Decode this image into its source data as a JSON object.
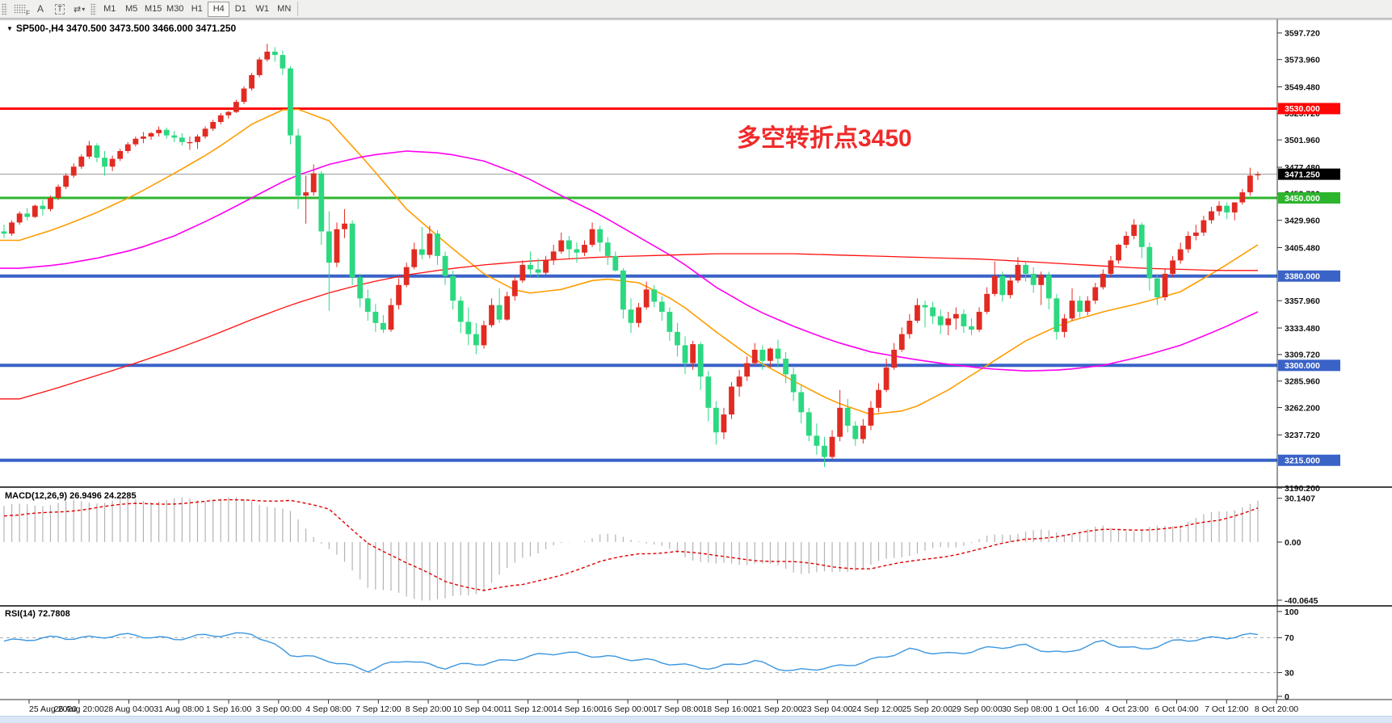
{
  "toolbar": {
    "font_indicator_icon": "F",
    "label_tool": "A",
    "textbox_tool": "T",
    "cycle_arrows_glyph": "⇄",
    "caret_glyph": "▾",
    "timeframes": [
      "M1",
      "M5",
      "M15",
      "M30",
      "H1",
      "H4",
      "D1",
      "W1",
      "MN"
    ],
    "active_timeframe": "H4"
  },
  "header": {
    "collapse_glyph": "▼",
    "title": "SP500-,H4 3470.500 3473.500 3466.000 3471.250"
  },
  "annotation": {
    "text": "多空转折点3450",
    "color": "#f02a2a"
  },
  "chart_data": {
    "type": "candlestick",
    "symbol": "SP500-",
    "timeframe": "H4",
    "up_color": "#e12b22",
    "down_color": "#2cd880",
    "current_price": {
      "value": 3471.25,
      "label": "3471.250",
      "box_color": "#000000",
      "line_color": "#9a9a9a"
    },
    "y_range_main": [
      3188,
      3610
    ],
    "price_ticks": [
      {
        "value": 3597.72,
        "label": "3597.720"
      },
      {
        "value": 3573.96,
        "label": "3573.960"
      },
      {
        "value": 3549.48,
        "label": "3549.480"
      },
      {
        "value": 3525.72,
        "label": "3525.720"
      },
      {
        "value": 3501.96,
        "label": "3501.960"
      },
      {
        "value": 3477.48,
        "label": "3477.480"
      },
      {
        "value": 3453.72,
        "label": "3453.720"
      },
      {
        "value": 3429.96,
        "label": "3429.960"
      },
      {
        "value": 3405.48,
        "label": "3405.480"
      },
      {
        "value": 3357.96,
        "label": "3357.960"
      },
      {
        "value": 3333.48,
        "label": "3333.480"
      },
      {
        "value": 3309.72,
        "label": "3309.720"
      },
      {
        "value": 3285.96,
        "label": "3285.960"
      },
      {
        "value": 3262.2,
        "label": "3262.200"
      },
      {
        "value": 3237.72,
        "label": "3237.720"
      },
      {
        "value": 3190.2,
        "label": "3190.200"
      }
    ],
    "levels": [
      {
        "price": 3530,
        "label": "3530.000",
        "color": "#fe0606",
        "thickness": 3
      },
      {
        "price": 3450,
        "label": "3450.000",
        "color": "#2db52d",
        "thickness": 3
      },
      {
        "price": 3380,
        "label": "3380.000",
        "color": "#3a63c8",
        "thickness": 4
      },
      {
        "price": 3300,
        "label": "3300.000",
        "color": "#3a63c8",
        "thickness": 4
      },
      {
        "price": 3215,
        "label": "3215.000",
        "color": "#3a63c8",
        "thickness": 4
      }
    ],
    "x_labels": [
      "25 Aug 2020",
      "26 Aug 20:00",
      "28 Aug 04:00",
      "31 Aug 08:00",
      "1 Sep 16:00",
      "3 Sep 00:00",
      "4 Sep 08:00",
      "7 Sep 12:00",
      "8 Sep 20:00",
      "10 Sep 04:00",
      "11 Sep 12:00",
      "14 Sep 16:00",
      "16 Sep 00:00",
      "17 Sep 08:00",
      "18 Sep 16:00",
      "21 Sep 20:00",
      "23 Sep 04:00",
      "24 Sep 12:00",
      "25 Sep 20:00",
      "29 Sep 00:00",
      "30 Sep 08:00",
      "1 Oct 16:00",
      "4 Oct 23:00",
      "6 Oct 04:00",
      "7 Oct 12:00",
      "8 Oct 20:00"
    ],
    "bars_per_day": 5,
    "candles": [
      [
        3420,
        3426,
        3414,
        3418
      ],
      [
        3418,
        3430,
        3416,
        3428
      ],
      [
        3428,
        3438,
        3426,
        3436
      ],
      [
        3436,
        3441,
        3430,
        3433
      ],
      [
        3433,
        3444,
        3432,
        3443
      ],
      [
        3443,
        3448,
        3434,
        3440
      ],
      [
        3440,
        3452,
        3438,
        3450
      ],
      [
        3450,
        3462,
        3448,
        3460
      ],
      [
        3460,
        3472,
        3458,
        3470
      ],
      [
        3470,
        3481,
        3468,
        3478
      ],
      [
        3478,
        3489,
        3476,
        3487
      ],
      [
        3487,
        3501,
        3485,
        3497
      ],
      [
        3497,
        3499,
        3482,
        3486
      ],
      [
        3486,
        3492,
        3470,
        3478
      ],
      [
        3478,
        3488,
        3474,
        3485
      ],
      [
        3485,
        3494,
        3483,
        3492
      ],
      [
        3492,
        3500,
        3490,
        3498
      ],
      [
        3498,
        3505,
        3496,
        3503
      ],
      [
        3503,
        3509,
        3499,
        3505
      ],
      [
        3505,
        3509,
        3502,
        3508
      ],
      [
        3508,
        3514,
        3505,
        3511
      ],
      [
        3511,
        3513,
        3503,
        3506
      ],
      [
        3506,
        3510,
        3500,
        3504
      ],
      [
        3504,
        3508,
        3497,
        3500
      ],
      [
        3500,
        3505,
        3493,
        3500
      ],
      [
        3500,
        3507,
        3494,
        3505
      ],
      [
        3505,
        3514,
        3503,
        3512
      ],
      [
        3512,
        3520,
        3510,
        3518
      ],
      [
        3518,
        3526,
        3516,
        3524
      ],
      [
        3524,
        3528,
        3521,
        3527
      ],
      [
        3527,
        3538,
        3526,
        3536
      ],
      [
        3536,
        3550,
        3534,
        3548
      ],
      [
        3548,
        3562,
        3546,
        3560
      ],
      [
        3560,
        3576,
        3558,
        3574
      ],
      [
        3574,
        3588,
        3572,
        3581
      ],
      [
        3581,
        3585,
        3572,
        3578
      ],
      [
        3578,
        3582,
        3560,
        3566
      ],
      [
        3566,
        3568,
        3498,
        3506
      ],
      [
        3506,
        3512,
        3440,
        3452
      ],
      [
        3452,
        3470,
        3427,
        3455
      ],
      [
        3455,
        3480,
        3452,
        3472
      ],
      [
        3472,
        3474,
        3408,
        3420
      ],
      [
        3420,
        3438,
        3349,
        3392
      ],
      [
        3392,
        3428,
        3388,
        3422
      ],
      [
        3422,
        3440,
        3414,
        3427
      ],
      [
        3427,
        3430,
        3372,
        3379
      ],
      [
        3379,
        3382,
        3352,
        3360
      ],
      [
        3360,
        3368,
        3340,
        3348
      ],
      [
        3348,
        3355,
        3330,
        3338
      ],
      [
        3338,
        3345,
        3329,
        3332
      ],
      [
        3332,
        3360,
        3330,
        3354
      ],
      [
        3354,
        3378,
        3350,
        3372
      ],
      [
        3372,
        3392,
        3370,
        3388
      ],
      [
        3388,
        3410,
        3386,
        3404
      ],
      [
        3404,
        3424,
        3395,
        3399
      ],
      [
        3399,
        3425,
        3396,
        3418
      ],
      [
        3418,
        3421,
        3390,
        3398
      ],
      [
        3398,
        3402,
        3372,
        3380
      ],
      [
        3380,
        3385,
        3350,
        3358
      ],
      [
        3358,
        3362,
        3329,
        3339
      ],
      [
        3339,
        3352,
        3318,
        3328
      ],
      [
        3328,
        3338,
        3310,
        3318
      ],
      [
        3318,
        3340,
        3315,
        3336
      ],
      [
        3336,
        3360,
        3334,
        3354
      ],
      [
        3354,
        3369,
        3338,
        3341
      ],
      [
        3341,
        3366,
        3340,
        3362
      ],
      [
        3362,
        3380,
        3358,
        3376
      ],
      [
        3376,
        3394,
        3374,
        3390
      ],
      [
        3390,
        3402,
        3380,
        3386
      ],
      [
        3386,
        3396,
        3378,
        3383
      ],
      [
        3383,
        3398,
        3381,
        3394
      ],
      [
        3394,
        3408,
        3390,
        3402
      ],
      [
        3402,
        3419,
        3400,
        3412
      ],
      [
        3412,
        3416,
        3396,
        3404
      ],
      [
        3404,
        3410,
        3392,
        3401
      ],
      [
        3401,
        3412,
        3398,
        3408
      ],
      [
        3408,
        3428,
        3406,
        3422
      ],
      [
        3422,
        3425,
        3402,
        3410
      ],
      [
        3410,
        3415,
        3390,
        3398
      ],
      [
        3398,
        3402,
        3384,
        3385
      ],
      [
        3385,
        3387,
        3342,
        3350
      ],
      [
        3350,
        3360,
        3329,
        3338
      ],
      [
        3338,
        3356,
        3334,
        3352
      ],
      [
        3352,
        3375,
        3350,
        3368
      ],
      [
        3368,
        3372,
        3352,
        3357
      ],
      [
        3357,
        3362,
        3340,
        3348
      ],
      [
        3348,
        3352,
        3322,
        3330
      ],
      [
        3330,
        3338,
        3308,
        3318
      ],
      [
        3318,
        3326,
        3292,
        3302
      ],
      [
        3302,
        3322,
        3296,
        3319
      ],
      [
        3319,
        3321,
        3278,
        3290
      ],
      [
        3290,
        3295,
        3250,
        3262
      ],
      [
        3262,
        3268,
        3229,
        3240
      ],
      [
        3240,
        3262,
        3234,
        3256
      ],
      [
        3256,
        3285,
        3252,
        3281
      ],
      [
        3281,
        3296,
        3272,
        3290
      ],
      [
        3290,
        3308,
        3286,
        3302
      ],
      [
        3302,
        3320,
        3300,
        3314
      ],
      [
        3314,
        3318,
        3296,
        3304
      ],
      [
        3304,
        3316,
        3298,
        3315
      ],
      [
        3315,
        3323,
        3298,
        3306
      ],
      [
        3306,
        3312,
        3284,
        3292
      ],
      [
        3292,
        3298,
        3268,
        3276
      ],
      [
        3276,
        3282,
        3248,
        3258
      ],
      [
        3258,
        3262,
        3232,
        3237
      ],
      [
        3237,
        3248,
        3220,
        3228
      ],
      [
        3228,
        3236,
        3209,
        3218
      ],
      [
        3218,
        3242,
        3216,
        3236
      ],
      [
        3236,
        3278,
        3232,
        3262
      ],
      [
        3262,
        3270,
        3240,
        3246
      ],
      [
        3246,
        3250,
        3228,
        3234
      ],
      [
        3234,
        3252,
        3230,
        3246
      ],
      [
        3246,
        3268,
        3242,
        3262
      ],
      [
        3262,
        3284,
        3258,
        3278
      ],
      [
        3278,
        3306,
        3276,
        3298
      ],
      [
        3298,
        3320,
        3296,
        3314
      ],
      [
        3314,
        3334,
        3312,
        3328
      ],
      [
        3328,
        3346,
        3324,
        3340
      ],
      [
        3340,
        3360,
        3338,
        3354
      ],
      [
        3354,
        3358,
        3334,
        3352
      ],
      [
        3352,
        3357,
        3337,
        3344
      ],
      [
        3344,
        3350,
        3328,
        3336
      ],
      [
        3336,
        3348,
        3327,
        3342
      ],
      [
        3342,
        3352,
        3332,
        3346
      ],
      [
        3346,
        3350,
        3329,
        3335
      ],
      [
        3335,
        3342,
        3327,
        3332
      ],
      [
        3332,
        3352,
        3330,
        3348
      ],
      [
        3348,
        3370,
        3346,
        3364
      ],
      [
        3364,
        3393,
        3362,
        3380
      ],
      [
        3380,
        3384,
        3357,
        3363
      ],
      [
        3363,
        3380,
        3360,
        3376
      ],
      [
        3376,
        3397,
        3374,
        3390
      ],
      [
        3390,
        3394,
        3375,
        3382
      ],
      [
        3382,
        3388,
        3365,
        3372
      ],
      [
        3372,
        3384,
        3354,
        3381
      ],
      [
        3381,
        3384,
        3350,
        3360
      ],
      [
        3360,
        3364,
        3323,
        3330
      ],
      [
        3330,
        3346,
        3325,
        3342
      ],
      [
        3342,
        3369,
        3340,
        3358
      ],
      [
        3358,
        3362,
        3343,
        3348
      ],
      [
        3348,
        3362,
        3345,
        3358
      ],
      [
        3358,
        3374,
        3355,
        3370
      ],
      [
        3370,
        3386,
        3368,
        3382
      ],
      [
        3382,
        3398,
        3379,
        3394
      ],
      [
        3394,
        3409,
        3391,
        3408
      ],
      [
        3408,
        3420,
        3405,
        3416
      ],
      [
        3416,
        3431,
        3413,
        3426
      ],
      [
        3426,
        3428,
        3396,
        3406
      ],
      [
        3406,
        3410,
        3367,
        3378
      ],
      [
        3378,
        3382,
        3354,
        3361
      ],
      [
        3361,
        3386,
        3358,
        3382
      ],
      [
        3382,
        3398,
        3379,
        3394
      ],
      [
        3394,
        3410,
        3391,
        3404
      ],
      [
        3404,
        3420,
        3401,
        3416
      ],
      [
        3416,
        3426,
        3412,
        3419
      ],
      [
        3419,
        3434,
        3416,
        3430
      ],
      [
        3430,
        3442,
        3427,
        3438
      ],
      [
        3438,
        3447,
        3434,
        3443
      ],
      [
        3443,
        3446,
        3431,
        3437
      ],
      [
        3437,
        3446,
        3430,
        3446
      ],
      [
        3446,
        3458,
        3444,
        3455
      ],
      [
        3455,
        3477,
        3452,
        3470
      ],
      [
        3470.5,
        3473.5,
        3466,
        3471.25
      ]
    ],
    "moving_averages": [
      {
        "name": "ma-fast-orange",
        "color": "#ff9d00",
        "width": 1.6,
        "daily": [
          3412,
          3423,
          3437,
          3453,
          3472,
          3492,
          3516,
          3532,
          3519,
          3481,
          3440,
          3410,
          3382,
          3364,
          3368,
          3378,
          3374,
          3357,
          3330,
          3305,
          3286,
          3268,
          3256,
          3260,
          3278,
          3300,
          3322,
          3338,
          3348,
          3356,
          3366,
          3386,
          3408
        ]
      },
      {
        "name": "ma-mid-magenta",
        "color": "#ff00f0",
        "width": 1.6,
        "daily": [
          3387,
          3390,
          3396,
          3404,
          3416,
          3432,
          3450,
          3468,
          3480,
          3488,
          3492,
          3490,
          3483,
          3470,
          3452,
          3435,
          3415,
          3395,
          3370,
          3350,
          3335,
          3322,
          3312,
          3306,
          3301,
          3297,
          3295,
          3296,
          3300,
          3308,
          3318,
          3332,
          3348
        ]
      },
      {
        "name": "ma-slow-red",
        "color": "#ff1010",
        "width": 1.3,
        "daily": [
          3270,
          3280,
          3291,
          3302,
          3314,
          3327,
          3341,
          3354,
          3365,
          3374,
          3381,
          3386,
          3390,
          3393,
          3395,
          3397,
          3398,
          3399,
          3400,
          3400,
          3400,
          3399,
          3398,
          3397,
          3396,
          3395,
          3393,
          3391,
          3389,
          3387,
          3386,
          3385,
          3385
        ]
      }
    ],
    "macd": {
      "label": "MACD(12,26,9) 26.9496 24.2285",
      "params": "12,26,9",
      "main_value": 26.9496,
      "signal_value": 24.2285,
      "range": [
        -40.0645,
        30.1407
      ],
      "axis_ticks": [
        {
          "value": 30.1407,
          "label": "30.1407"
        },
        {
          "value": 0,
          "label": "0.00"
        },
        {
          "value": -40.0645,
          "label": "-40.0645"
        }
      ],
      "hist_color": "#b3b3b3",
      "signal_color": "#e00000",
      "hist_daily": [
        25,
        27,
        28,
        29,
        29,
        30,
        29,
        20,
        -5,
        -30,
        -38,
        -40,
        -33,
        -10,
        -2,
        5,
        2,
        -8,
        -16,
        -14,
        -20,
        -22,
        -16,
        -8,
        -4,
        3,
        8,
        6,
        10,
        8,
        13,
        21,
        27
      ],
      "signal_daily": [
        18,
        21,
        24,
        26,
        27,
        28,
        29,
        29,
        22,
        0,
        -15,
        -27,
        -33,
        -30,
        -22,
        -14,
        -8,
        -6,
        -10,
        -12,
        -14,
        -17,
        -18,
        -14,
        -9,
        -4,
        2,
        5,
        8,
        9,
        10,
        15,
        24
      ]
    },
    "rsi": {
      "label": "RSI(14) 72.7808",
      "period": 14,
      "value": 72.7808,
      "range": [
        0,
        100
      ],
      "axis_ticks": [
        {
          "value": 100,
          "label": "100"
        },
        {
          "value": 70,
          "label": "70"
        },
        {
          "value": 30,
          "label": "30"
        },
        {
          "value": 0,
          "label": "0"
        }
      ],
      "level_lines": [
        70,
        30
      ],
      "color": "#3b96e0",
      "daily": [
        66,
        71,
        70,
        73,
        69,
        72,
        76,
        50,
        45,
        32,
        45,
        36,
        40,
        48,
        52,
        50,
        44,
        40,
        35,
        43,
        32,
        35,
        45,
        55,
        52,
        57,
        61,
        52,
        65,
        57,
        66,
        71,
        72.8
      ]
    }
  }
}
